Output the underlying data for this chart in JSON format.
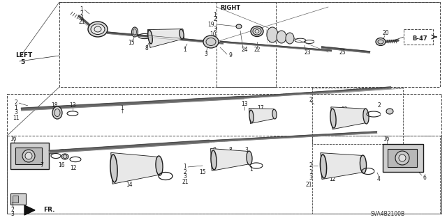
{
  "bg_color": "#ffffff",
  "line_color": "#1a1a1a",
  "fig_width": 6.4,
  "fig_height": 3.19,
  "dpi": 100,
  "diagram_code": "SVA4B2100B",
  "ref_label": "B-47",
  "left_label": "LEFT",
  "left_num": "5",
  "right_label": "RIGHT",
  "fr_label": "FR."
}
